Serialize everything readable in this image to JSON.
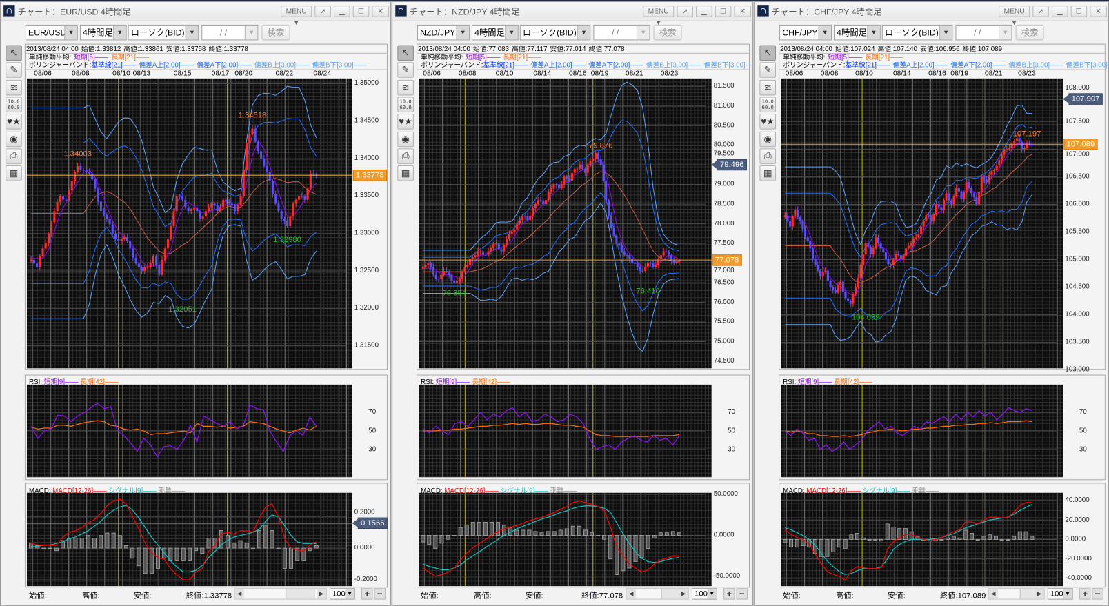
{
  "common": {
    "menu_label": "MENU",
    "search_label": "検索",
    "date_placeholder": "/ /",
    "timeframe": "4時間足",
    "chart_type": "ローソク(BID)",
    "zoom_value": "100",
    "toolbar_icons": [
      "cursor-icon",
      "pencil-icon",
      "indicator-icon",
      "numeric-icon",
      "shapes-icon",
      "eye-icon",
      "printer-icon",
      "grid-save-icon"
    ],
    "numeric_icon_text": [
      "10.0",
      "60.0"
    ],
    "legend": {
      "sma_label": "単純移動平均:",
      "sma_short": "短期[5]",
      "sma_long": "長期[21]",
      "bb_label": "ボリンジャーバンド:",
      "bb_mid": "基準線[21]",
      "bb_a_up": "偏差A上[2.00]",
      "bb_a_dn": "偏差A下[2.00]",
      "bb_b_up": "偏差B上[3.00]",
      "bb_b_dn": "偏差B下[3.00]",
      "rsi_label": "RSI:",
      "rsi_short": "短期[9]",
      "rsi_long": "長期[42]",
      "macd_label": "MACD:",
      "macd_line": "MACD[12-26]",
      "macd_signal": "シグナル[9]",
      "macd_hist": "乖離",
      "dash": "——"
    },
    "bottom": {
      "open": "始値:",
      "high": "高値:",
      "low": "安値:"
    }
  },
  "colors": {
    "candle_up": "#ff2a2a",
    "candle_down": "#5a4cff",
    "sma_short": "#9900ff",
    "sma_long": "#ff6600",
    "bb_mid": "#0030ff",
    "bb_a": "#1e6fff",
    "bb_b": "#5aa5ff",
    "rsi_short": "#9010ff",
    "rsi_long": "#ff6a00",
    "macd": "#ff0000",
    "signal": "#10c0c0",
    "histogram": "#8a8a8a",
    "week_separator": "#c8b400",
    "current_price": "#f39a2d",
    "marker": "#4d5d7e",
    "high_label": "#ff7f27",
    "low_label": "#20c020"
  },
  "windows": [
    {
      "title": "チャート：EUR/USD 4時間足",
      "pair": "EUR/USD",
      "info": {
        "datetime": "2013/08/24 04:00",
        "open": "始値:1.33812",
        "high": "高値:1.33861",
        "low": "安値:1.33758",
        "close": "終値:1.33778"
      },
      "bottom_close": "終値:1.33778"
    },
    {
      "title": "チャート：NZD/JPY 4時間足",
      "pair": "NZD/JPY",
      "info": {
        "datetime": "2013/08/24 04:00",
        "open": "始値:77.083",
        "high": "高値:77.117",
        "low": "安値:77.014",
        "close": "終値:77.078"
      },
      "bottom_close": "終値:77.078"
    },
    {
      "title": "チャート：CHF/JPY 4時間足",
      "pair": "CHF/JPY",
      "info": {
        "datetime": "2013/08/24 04:00",
        "open": "始値:107.024",
        "high": "高値:107.140",
        "low": "安値:106.956",
        "close": "終値:107.089"
      },
      "bottom_close": "終値:107.089"
    }
  ],
  "chart_data": [
    {
      "type": "candlestick",
      "pair": "EUR/USD",
      "dates": [
        {
          "label": "08/06",
          "bar": 2
        },
        {
          "label": "08/08",
          "bar": 8.5
        },
        {
          "label": "08/10",
          "bar": 15.5
        },
        {
          "label": "08/13",
          "bar": 19
        },
        {
          "label": "08/15",
          "bar": 26
        },
        {
          "label": "08/17",
          "bar": 32.5
        },
        {
          "label": "08/20",
          "bar": 36.5
        },
        {
          "label": "08/22",
          "bar": 43.5
        },
        {
          "label": "08/24",
          "bar": 50
        }
      ],
      "week_separators": [
        15,
        33.7
      ],
      "price": {
        "ylim": [
          1.312,
          1.3507
        ],
        "ticks": [
          "1.35000",
          "1.34500",
          "1.34000",
          "1.33500",
          "1.33000",
          "1.32500",
          "1.32000",
          "1.31500"
        ],
        "close": [
          1.3265,
          1.3255,
          1.328,
          1.33,
          1.333,
          1.335,
          1.3345,
          1.337,
          1.339,
          1.3385,
          1.338,
          1.336,
          1.333,
          1.332,
          1.33,
          1.329,
          1.3295,
          1.328,
          1.326,
          1.325,
          1.3255,
          1.327,
          1.3245,
          1.328,
          1.331,
          1.335,
          1.3345,
          1.333,
          1.3335,
          1.332,
          1.333,
          1.334,
          1.333,
          1.3345,
          1.334,
          1.333,
          1.335,
          1.342,
          1.344,
          1.341,
          1.339,
          1.337,
          1.334,
          1.332,
          1.331,
          1.334,
          1.335,
          1.3345,
          1.338,
          1.3378
        ],
        "current": "1.33778",
        "marker": null,
        "annotations": [
          {
            "label": "1.34003",
            "value": 1.34003,
            "bar": 8,
            "kind": "high"
          },
          {
            "label": "1.34518",
            "value": 1.34518,
            "bar": 38,
            "kind": "high"
          },
          {
            "label": "1.32051",
            "value": 1.32051,
            "bar": 26,
            "kind": "low"
          },
          {
            "label": "1.32980",
            "value": 1.3298,
            "bar": 44,
            "kind": "low"
          }
        ]
      },
      "rsi": {
        "ylim": [
          0,
          100
        ],
        "ticks": [
          "70",
          "50",
          "30"
        ],
        "short": [
          55,
          42,
          50,
          52,
          67,
          66,
          60,
          66,
          70,
          75,
          80,
          74,
          76,
          50,
          45,
          37,
          28,
          42,
          35,
          22,
          33,
          34,
          30,
          40,
          56,
          38,
          66,
          62,
          58,
          55,
          60,
          52,
          56,
          78,
          74,
          73,
          50,
          38,
          28,
          45,
          50,
          45,
          65,
          55
        ],
        "long": [
          54,
          52,
          53,
          53,
          56,
          56,
          55,
          57,
          59,
          60,
          61,
          60,
          56,
          55,
          52,
          51,
          52,
          50,
          46,
          47,
          47,
          48,
          49,
          50,
          48,
          58,
          55,
          55,
          54,
          55,
          53,
          54,
          55,
          60,
          59,
          58,
          55,
          52,
          50,
          48,
          51,
          53,
          51,
          55
        ]
      },
      "macd": {
        "ylim": [
          -0.24,
          0.35
        ],
        "ticks": [
          "0.2000",
          "0.0000",
          "-0.2000"
        ],
        "current": "0.1566",
        "macd": [
          0.03,
          0.02,
          0.02,
          0.02,
          0.02,
          0.07,
          0.1,
          0.11,
          0.13,
          0.16,
          0.18,
          0.22,
          0.27,
          0.3,
          0.31,
          0.28,
          0.2,
          0.12,
          0.03,
          -0.03,
          -0.06,
          -0.07,
          -0.13,
          -0.17,
          -0.2,
          -0.2,
          -0.15,
          -0.13,
          -0.02,
          0.02,
          0.09,
          0.1,
          0.09,
          0.11,
          0.11,
          0.1,
          0.19,
          0.26,
          0.28,
          0.2,
          0.06,
          0.0,
          -0.01,
          -0.02,
          0.02,
          0.04
        ],
        "signal": [
          0.01,
          0.01,
          0.02,
          0.02,
          0.03,
          0.04,
          0.06,
          0.07,
          0.09,
          0.11,
          0.14,
          0.17,
          0.21,
          0.24,
          0.26,
          0.27,
          0.24,
          0.19,
          0.13,
          0.07,
          0.02,
          -0.03,
          -0.08,
          -0.12,
          -0.15,
          -0.15,
          -0.14,
          -0.11,
          -0.06,
          -0.02,
          0.02,
          0.05,
          0.07,
          0.08,
          0.09,
          0.1,
          0.12,
          0.17,
          0.21,
          0.2,
          0.14,
          0.08,
          0.04,
          0.03,
          0.03,
          0.03
        ]
      }
    },
    {
      "type": "candlestick",
      "pair": "NZD/JPY",
      "dates": [
        {
          "label": "08/06",
          "bar": 1.7
        },
        {
          "label": "08/08",
          "bar": 8.5
        },
        {
          "label": "08/10",
          "bar": 15.6
        },
        {
          "label": "08/14",
          "bar": 22.8
        },
        {
          "label": "08/16",
          "bar": 29.6
        },
        {
          "label": "08/19",
          "bar": 33.8
        },
        {
          "label": "08/21",
          "bar": 40.4
        },
        {
          "label": "08/23",
          "bar": 47.1
        }
      ],
      "week_separators": [
        8.1,
        32.5
      ],
      "price": {
        "ylim": [
          74.32,
          81.7
        ],
        "ticks": [
          "81.500",
          "81.000",
          "80.500",
          "80.000",
          "79.500",
          "79.000",
          "78.500",
          "78.000",
          "77.500",
          "77.000",
          "76.500",
          "76.000",
          "75.500",
          "75.000",
          "74.500"
        ],
        "close": [
          76.9,
          77.0,
          76.7,
          76.6,
          76.8,
          76.7,
          76.5,
          76.6,
          76.9,
          77.1,
          77.2,
          77.3,
          77.2,
          77.4,
          77.5,
          77.3,
          77.6,
          77.8,
          78.0,
          78.2,
          78.1,
          78.4,
          78.6,
          78.5,
          78.8,
          79.0,
          78.9,
          79.2,
          79.1,
          79.4,
          79.5,
          79.3,
          79.6,
          79.8,
          79.5,
          78.6,
          77.9,
          77.5,
          77.3,
          77.2,
          77.0,
          76.9,
          76.8,
          77.0,
          76.9,
          77.1,
          77.3,
          77.2,
          77.0,
          77.078
        ],
        "current": "77.078",
        "marker": "79.496",
        "annotations": [
          {
            "label": "79.876",
            "value": 79.876,
            "bar": 34,
            "kind": "high"
          },
          {
            "label": "76.354",
            "value": 76.354,
            "bar": 6,
            "kind": "low"
          },
          {
            "label": "76.410",
            "value": 76.41,
            "bar": 43,
            "kind": "low"
          }
        ]
      },
      "rsi": {
        "ylim": [
          0,
          100
        ],
        "ticks": [
          "70",
          "50",
          "30"
        ],
        "short": [
          52,
          48,
          55,
          50,
          46,
          58,
          60,
          55,
          62,
          70,
          62,
          68,
          65,
          72,
          75,
          65,
          70,
          60,
          62,
          68,
          65,
          60,
          62,
          68,
          65,
          58,
          42,
          30,
          33,
          35,
          30,
          38,
          42,
          45,
          40,
          38,
          45,
          40,
          42,
          35,
          45
        ],
        "long": [
          50,
          50,
          50,
          51,
          51,
          52,
          52,
          53,
          54,
          55,
          55,
          56,
          56,
          57,
          58,
          57,
          58,
          57,
          57,
          58,
          58,
          57,
          56,
          56,
          55,
          54,
          50,
          46,
          45,
          45,
          44,
          44,
          44,
          44,
          44,
          44,
          45,
          45,
          45,
          45,
          46
        ]
      },
      "macd": {
        "ylim": [
          -62,
          52
        ],
        "ticks": [
          "50.0000",
          "0.0000",
          "-50.0000"
        ],
        "current": null,
        "macd": [
          -40,
          -45,
          -50,
          -48,
          -45,
          -40,
          -30,
          -22,
          -15,
          -10,
          -5,
          0,
          5,
          8,
          10,
          12,
          15,
          18,
          20,
          22,
          25,
          28,
          32,
          35,
          40,
          42,
          40,
          38,
          35,
          30,
          10,
          -15,
          -25,
          -35,
          -40,
          -45,
          -42,
          -35,
          -30,
          -28,
          -25,
          -25
        ],
        "signal": [
          -35,
          -38,
          -40,
          -42,
          -42,
          -40,
          -36,
          -30,
          -25,
          -20,
          -15,
          -10,
          -5,
          0,
          4,
          8,
          11,
          14,
          17,
          20,
          22,
          25,
          28,
          30,
          33,
          35,
          36,
          36,
          35,
          33,
          28,
          15,
          2,
          -10,
          -20,
          -28,
          -32,
          -33,
          -32,
          -30,
          -28,
          -27
        ]
      }
    },
    {
      "type": "candlestick",
      "pair": "CHF/JPY",
      "dates": [
        {
          "label": "08/06",
          "bar": 1.8
        },
        {
          "label": "08/08",
          "bar": 8.8
        },
        {
          "label": "08/10",
          "bar": 15.7
        },
        {
          "label": "08/14",
          "bar": 23.2
        },
        {
          "label": "08/16",
          "bar": 30.2
        },
        {
          "label": "08/19",
          "bar": 34.6
        },
        {
          "label": "08/21",
          "bar": 41.4
        },
        {
          "label": "08/23",
          "bar": 48
        }
      ],
      "week_separators": [
        15.3,
        39.3
      ],
      "price": {
        "ylim": [
          103.03,
          108.28
        ],
        "ticks": [
          "108.000",
          "107.500",
          "107.000",
          "106.500",
          "106.000",
          "105.500",
          "105.000",
          "104.500",
          "104.000",
          "103.500",
          "103.000"
        ],
        "close": [
          105.8,
          105.6,
          105.9,
          105.7,
          105.4,
          105.2,
          104.9,
          104.7,
          104.8,
          104.5,
          104.4,
          104.6,
          104.3,
          104.2,
          104.5,
          104.9,
          105.3,
          105.1,
          105.4,
          105.2,
          105.0,
          104.9,
          105.1,
          105.0,
          105.2,
          105.3,
          105.4,
          105.6,
          105.8,
          105.7,
          106.0,
          105.9,
          106.2,
          106.0,
          106.3,
          106.1,
          106.4,
          106.2,
          106.0,
          106.5,
          106.4,
          106.6,
          106.7,
          106.9,
          107.0,
          107.1,
          107.2,
          107.0,
          107.1,
          107.089
        ],
        "current": "107.089",
        "marker": "107.907",
        "annotations": [
          {
            "label": "107.197",
            "value": 107.197,
            "bar": 48,
            "kind": "high"
          },
          {
            "label": "104.039",
            "value": 104.039,
            "bar": 16,
            "kind": "low"
          }
        ]
      },
      "rsi": {
        "ylim": [
          0,
          100
        ],
        "ticks": [
          "70",
          "50",
          "30"
        ],
        "short": [
          50,
          45,
          52,
          48,
          40,
          42,
          30,
          35,
          28,
          32,
          38,
          30,
          35,
          40,
          50,
          55,
          60,
          52,
          55,
          48,
          45,
          50,
          55,
          52,
          60,
          58,
          62,
          65,
          60,
          68,
          62,
          70,
          65,
          72,
          66,
          70,
          62,
          68,
          75,
          72,
          70,
          74,
          72
        ],
        "long": [
          50,
          49,
          50,
          49,
          47,
          47,
          45,
          45,
          44,
          44,
          45,
          44,
          45,
          46,
          48,
          49,
          51,
          51,
          52,
          51,
          50,
          51,
          52,
          52,
          53,
          53,
          54,
          55,
          55,
          56,
          56,
          57,
          57,
          58,
          58,
          59,
          58,
          59,
          60,
          60,
          60,
          61,
          60
        ]
      },
      "macd": {
        "ylim": [
          -48,
          48
        ],
        "ticks": [
          "40.0000",
          "20.0000",
          "0.0000",
          "-20.0000",
          "-40.0000"
        ],
        "current": null,
        "macd": [
          10,
          5,
          2,
          0,
          -5,
          -15,
          -25,
          -33,
          -36,
          -38,
          -42,
          -32,
          -28,
          -29,
          -30,
          -30,
          -29,
          -10,
          -2,
          2,
          5,
          5,
          2,
          0,
          -1,
          0,
          2,
          5,
          8,
          10,
          18,
          18,
          16,
          20,
          23,
          23,
          22,
          23,
          28,
          35,
          38,
          38
        ],
        "signal": [
          12,
          10,
          7,
          4,
          0,
          -6,
          -14,
          -22,
          -28,
          -33,
          -36,
          -35,
          -32,
          -30,
          -30,
          -30,
          -28,
          -20,
          -10,
          -5,
          -2,
          0,
          0,
          0,
          0,
          1,
          2,
          4,
          6,
          9,
          12,
          14,
          16,
          18,
          20,
          21,
          22,
          23,
          26,
          30,
          33,
          36
        ]
      }
    }
  ]
}
